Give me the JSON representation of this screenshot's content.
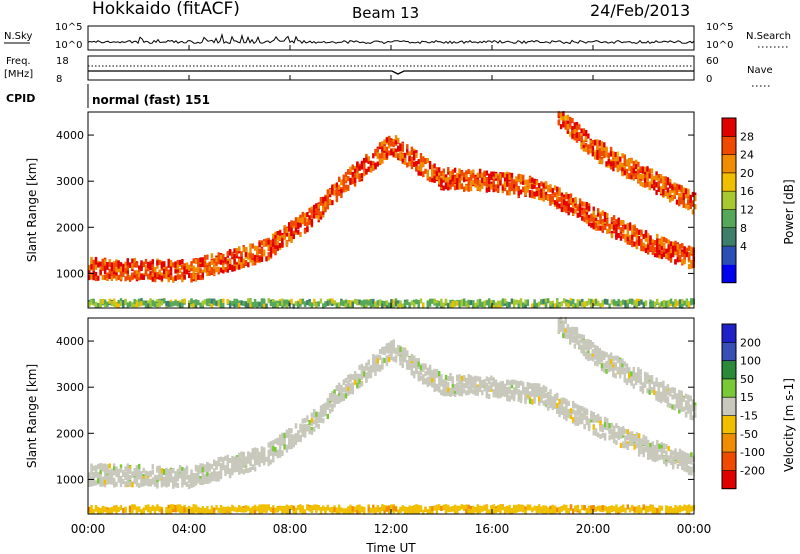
{
  "header": {
    "station": "Hokkaido (fitACF)",
    "beam": "Beam 13",
    "date": "24/Feb/2013"
  },
  "top_labels": {
    "nsky": "N.Sky",
    "nsearch": "N.Search",
    "freq": "Freq.",
    "freq_unit": "[MHz]",
    "nave": "Nave",
    "cpid": "CPID",
    "cpid_text": "normal (fast) 151"
  },
  "top_ticks": {
    "nsky_left": [
      "10^5",
      "10^0"
    ],
    "nsky_right": [
      "10^5",
      "10^0"
    ],
    "freq_left": [
      "18",
      "8"
    ],
    "nave_right": [
      "60",
      "0"
    ]
  },
  "colors": {
    "power": [
      "#0000ee",
      "#2a4fb5",
      "#3d7f6a",
      "#55a85a",
      "#a8c832",
      "#f0c000",
      "#f08c00",
      "#f04a00",
      "#e00000"
    ],
    "velocity": [
      "#e00000",
      "#f04a00",
      "#f08c00",
      "#f0c000",
      "#c8c8bc",
      "#78c838",
      "#2a8a3a",
      "#3a4fb5",
      "#2020c8"
    ]
  },
  "chart_data": [
    {
      "type": "heatmap",
      "ylabel": "Slant Range [km]",
      "ylim": [
        250,
        4500
      ],
      "yticks": [
        1000,
        2000,
        3000,
        4000
      ],
      "xlim": [
        0,
        24
      ],
      "colorbar": {
        "label": "Power [dB]",
        "ticks": [
          "28",
          "24",
          "20",
          "16",
          "12",
          "8",
          "4"
        ],
        "range": [
          0,
          32
        ]
      },
      "features": [
        {
          "desc": "ionospheric band",
          "points": [
            [
              0,
              1100
            ],
            [
              4,
              1050
            ],
            [
              6,
              1350
            ],
            [
              7,
              1500
            ],
            [
              8,
              1900
            ],
            [
              9,
              2300
            ],
            [
              10,
              2900
            ],
            [
              12,
              3800
            ],
            [
              13,
              3400
            ],
            [
              14,
              3050
            ],
            [
              16,
              3000
            ],
            [
              18,
              2800
            ],
            [
              20,
              2200
            ],
            [
              22,
              1700
            ],
            [
              24,
              1300
            ]
          ],
          "power": 27
        },
        {
          "desc": "band 2",
          "points": [
            [
              18.6,
              4400
            ],
            [
              20,
              3700
            ],
            [
              22,
              3100
            ],
            [
              24,
              2500
            ]
          ],
          "power": 26
        },
        {
          "desc": "near-range echoes",
          "points": [
            [
              0,
              350
            ],
            [
              24,
              350
            ]
          ],
          "power": 14
        }
      ]
    },
    {
      "type": "heatmap",
      "ylabel": "Slant Range [km]",
      "xlabel": "Time UT",
      "ylim": [
        250,
        4500
      ],
      "yticks": [
        1000,
        2000,
        3000,
        4000
      ],
      "xlim": [
        0,
        24
      ],
      "xticks": [
        "00:00",
        "04:00",
        "08:00",
        "12:00",
        "16:00",
        "20:00",
        "00:00"
      ],
      "colorbar": {
        "label": "Velocity [m s-1]",
        "ticks": [
          "200",
          "100",
          "50",
          "15",
          "-15",
          "-50",
          "-100",
          "-200"
        ],
        "range": [
          -250,
          250
        ]
      },
      "features": [
        {
          "desc": "ground scatter band",
          "points": [
            [
              0,
              1100
            ],
            [
              4,
              1050
            ],
            [
              6,
              1350
            ],
            [
              7,
              1500
            ],
            [
              8,
              1900
            ],
            [
              9,
              2300
            ],
            [
              10,
              2900
            ],
            [
              12,
              3800
            ],
            [
              13,
              3400
            ],
            [
              14,
              3050
            ],
            [
              16,
              3000
            ],
            [
              18,
              2800
            ],
            [
              20,
              2200
            ],
            [
              22,
              1700
            ],
            [
              24,
              1300
            ]
          ],
          "velocity": 0
        },
        {
          "desc": "band 2",
          "points": [
            [
              18.6,
              4400
            ],
            [
              20,
              3700
            ],
            [
              22,
              3100
            ],
            [
              24,
              2500
            ]
          ],
          "velocity": 0
        },
        {
          "desc": "near-range echoes",
          "points": [
            [
              0,
              350
            ],
            [
              24,
              350
            ]
          ],
          "velocity": -60
        }
      ]
    }
  ]
}
